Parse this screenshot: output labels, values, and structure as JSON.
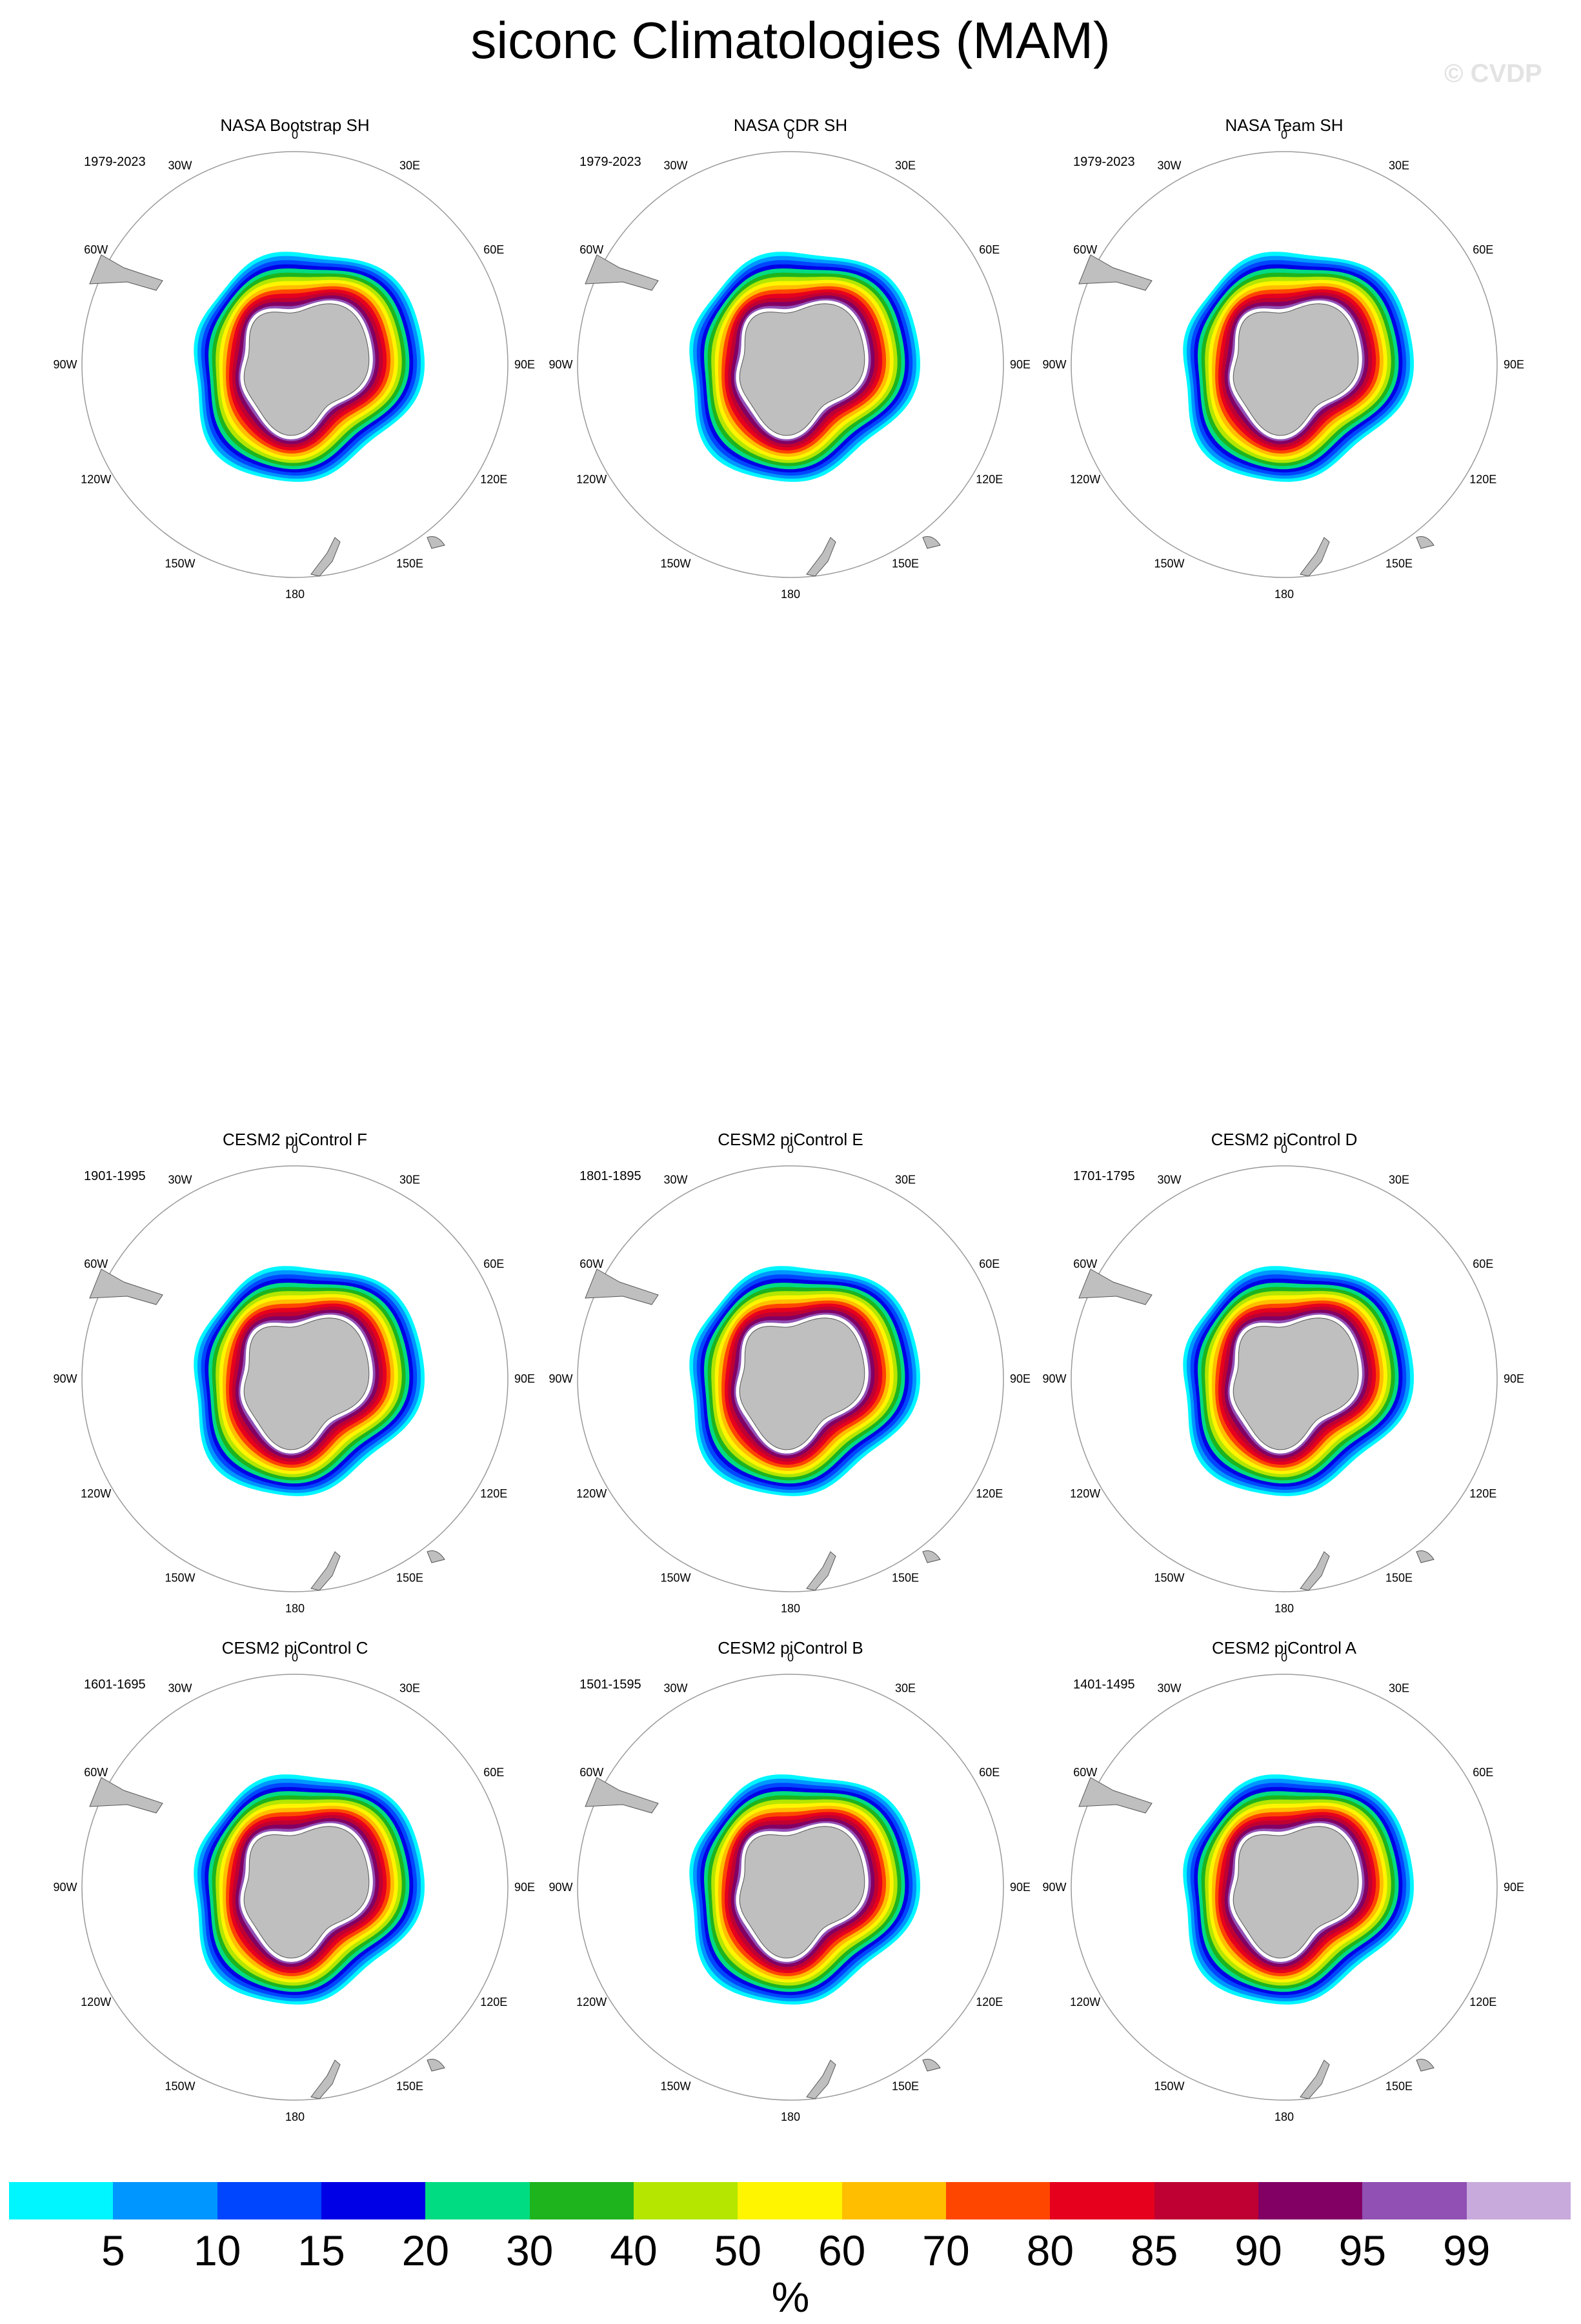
{
  "title": "siconc Climatologies (MAM)",
  "copyright": "© CVDP",
  "map_labels": [
    "0",
    "30E",
    "60E",
    "90E",
    "120E",
    "150E",
    "180",
    "150W",
    "120W",
    "90W",
    "60W",
    "30W"
  ],
  "panels": [
    {
      "title": "NASA Bootstrap SH",
      "years": "1979-2023"
    },
    {
      "title": "NASA CDR SH",
      "years": "1979-2023"
    },
    {
      "title": "NASA Team SH",
      "years": "1979-2023"
    },
    {
      "title": "CESM2 piControl F",
      "years": "1901-1995"
    },
    {
      "title": "CESM2 piControl E",
      "years": "1801-1895"
    },
    {
      "title": "CESM2 piControl D",
      "years": "1701-1795"
    },
    {
      "title": "CESM2 piControl C",
      "years": "1601-1695"
    },
    {
      "title": "CESM2 piControl B",
      "years": "1501-1595"
    },
    {
      "title": "CESM2 piControl A",
      "years": "1401-1495"
    }
  ],
  "colorbar": {
    "levels": [
      "5",
      "10",
      "15",
      "20",
      "30",
      "40",
      "50",
      "60",
      "70",
      "80",
      "85",
      "90",
      "95",
      "99"
    ],
    "colors": [
      "#00f6ff",
      "#0096ff",
      "#0046ff",
      "#0000e6",
      "#00dc82",
      "#1eb41e",
      "#b4e600",
      "#fff500",
      "#ffbe00",
      "#ff4600",
      "#e6001e",
      "#be0032",
      "#820064",
      "#9150b4",
      "#c8aadc"
    ],
    "units": "%"
  }
}
